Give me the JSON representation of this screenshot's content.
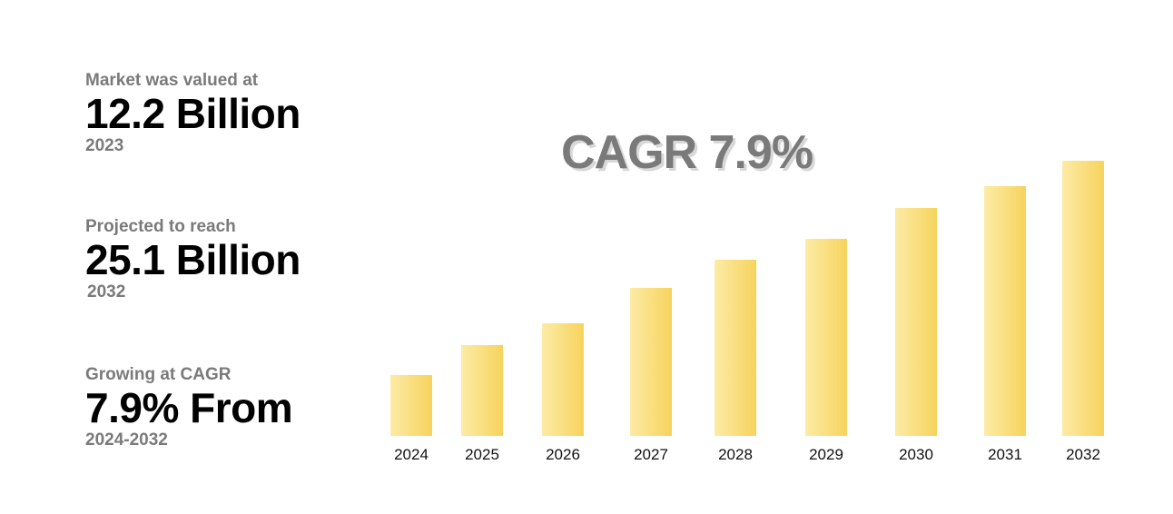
{
  "stats": [
    {
      "label": "Market was valued at",
      "value": "12.2 Billion",
      "sub": "2023"
    },
    {
      "label": "Projected to reach",
      "value": "25.1 Billion",
      "sub": "2032"
    },
    {
      "label": "Growing at CAGR",
      "value": "7.9% From",
      "sub": "2024-2032"
    }
  ],
  "chart_data": {
    "type": "bar",
    "title": "CAGR 7.9%",
    "categories": [
      "2024",
      "2025",
      "2026",
      "2027",
      "2028",
      "2029",
      "2030",
      "2031",
      "2032"
    ],
    "values": [
      67,
      100,
      124,
      163,
      194,
      217,
      251,
      275,
      303
    ],
    "xlabel": "",
    "ylabel": "",
    "ylim": [
      0,
      303
    ],
    "grid": false,
    "legend": "none",
    "colors": {
      "bar_light": "#fdeba6",
      "bar_dark": "#f6d35c",
      "title": "#7a7a7a",
      "title_shadow": "#d8d8d8"
    }
  }
}
